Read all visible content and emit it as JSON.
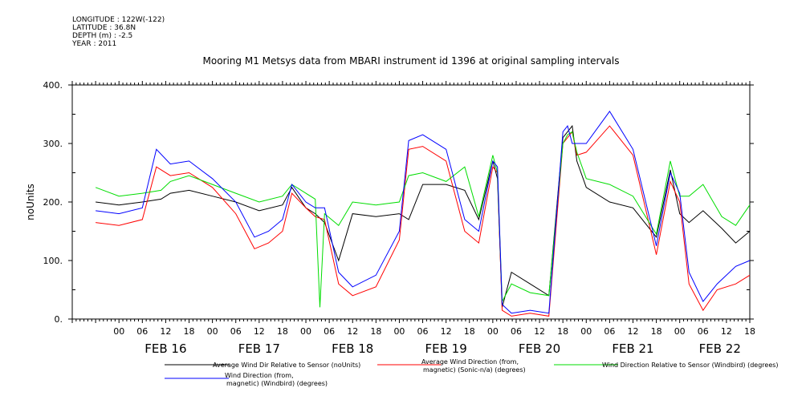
{
  "header": {
    "longitude": "LONGITUDE : 122W(-122)",
    "latitude": "LATITUDE : 36.8N",
    "depth": "DEPTH (m) : -2.5",
    "year": "YEAR : 2011"
  },
  "chart_data": {
    "type": "line",
    "title": "Mooring M1 Metsys data from MBARI instrument id 1396 at original sampling intervals",
    "ylabel": "noUnits",
    "ylim": [
      0,
      400
    ],
    "xlim": [
      -0.5,
      6.75
    ],
    "y_ticks": [
      "0.",
      "100.",
      "200.",
      "300.",
      "400."
    ],
    "hour_ticks": [
      "00",
      "06",
      "12",
      "18",
      "00",
      "06",
      "12",
      "18",
      "00",
      "06",
      "12",
      "18",
      "00",
      "06",
      "12",
      "18",
      "00",
      "06",
      "12",
      "18",
      "00",
      "06",
      "12",
      "18",
      "00",
      "06",
      "12",
      "18"
    ],
    "hour_tick_days": [
      0,
      0.25,
      0.5,
      0.75,
      1,
      1.25,
      1.5,
      1.75,
      2,
      2.25,
      2.5,
      2.75,
      3,
      3.25,
      3.5,
      3.75,
      4,
      4.25,
      4.5,
      4.75,
      5,
      5.25,
      5.5,
      5.75,
      6,
      6.25,
      6.5,
      6.75
    ],
    "day_labels": [
      "FEB 16",
      "FEB 17",
      "FEB 18",
      "FEB 19",
      "FEB 20",
      "FEB 21",
      "FEB 22"
    ],
    "day_label_at": [
      0.5,
      1.5,
      2.5,
      3.5,
      4.5,
      5.5,
      6.43
    ],
    "series": [
      {
        "name": "Average Wind Dir Relative to Sensor (noUnits)",
        "color": "#000000",
        "x": [
          -0.25,
          0,
          0.25,
          0.45,
          0.55,
          0.75,
          1,
          1.25,
          1.5,
          1.75,
          1.85,
          2.0,
          2.1,
          2.2,
          2.35,
          2.5,
          2.75,
          3.0,
          3.1,
          3.25,
          3.5,
          3.7,
          3.85,
          4.0,
          4.05,
          4.1,
          4.2,
          4.4,
          4.6,
          4.75,
          4.8,
          4.85,
          4.9,
          5.0,
          5.25,
          5.5,
          5.75,
          5.9,
          6.0,
          6.1,
          6.25,
          6.45,
          6.6,
          6.75
        ],
        "values": [
          200,
          195,
          200,
          205,
          215,
          220,
          210,
          200,
          185,
          195,
          225,
          190,
          180,
          165,
          100,
          180,
          175,
          180,
          170,
          230,
          230,
          220,
          170,
          270,
          240,
          20,
          80,
          60,
          40,
          310,
          320,
          330,
          270,
          225,
          200,
          190,
          140,
          255,
          180,
          165,
          185,
          155,
          130,
          150
        ]
      },
      {
        "name": "Average Wind Direction (from, magnetic) (Sonic-n/a) (degrees)",
        "color": "#ff0000",
        "x": [
          -0.25,
          0,
          0.25,
          0.4,
          0.55,
          0.75,
          1,
          1.25,
          1.45,
          1.6,
          1.75,
          1.85,
          2.0,
          2.1,
          2.2,
          2.35,
          2.5,
          2.75,
          3.0,
          3.1,
          3.25,
          3.5,
          3.7,
          3.85,
          4.0,
          4.05,
          4.1,
          4.2,
          4.4,
          4.6,
          4.75,
          4.8,
          4.85,
          4.9,
          5.0,
          5.25,
          5.5,
          5.75,
          5.9,
          6.0,
          6.1,
          6.25,
          6.4,
          6.6,
          6.75
        ],
        "values": [
          165,
          160,
          170,
          260,
          245,
          250,
          225,
          180,
          120,
          130,
          150,
          215,
          190,
          175,
          170,
          60,
          40,
          55,
          135,
          290,
          295,
          270,
          150,
          130,
          260,
          250,
          15,
          5,
          10,
          5,
          300,
          310,
          320,
          280,
          285,
          330,
          280,
          110,
          235,
          200,
          60,
          15,
          50,
          60,
          75
        ]
      },
      {
        "name": "Wind Direction Relative to Sensor (Windbird) (degrees)",
        "color": "#00dd00",
        "x": [
          -0.25,
          0,
          0.25,
          0.45,
          0.55,
          0.75,
          1,
          1.25,
          1.5,
          1.75,
          1.85,
          2.0,
          2.1,
          2.15,
          2.2,
          2.35,
          2.5,
          2.75,
          3.0,
          3.1,
          3.25,
          3.5,
          3.7,
          3.85,
          4.0,
          4.05,
          4.1,
          4.2,
          4.4,
          4.6,
          4.75,
          4.8,
          4.85,
          4.9,
          5.0,
          5.25,
          5.5,
          5.75,
          5.9,
          6.0,
          6.1,
          6.25,
          6.45,
          6.6,
          6.75
        ],
        "values": [
          225,
          210,
          215,
          220,
          235,
          245,
          230,
          215,
          200,
          210,
          230,
          215,
          205,
          20,
          180,
          160,
          200,
          195,
          200,
          245,
          250,
          235,
          260,
          175,
          280,
          250,
          30,
          60,
          45,
          40,
          300,
          315,
          320,
          285,
          240,
          230,
          210,
          145,
          270,
          210,
          210,
          230,
          175,
          160,
          195
        ]
      },
      {
        "name": "Wind Direction (from, magnetic) (Windbird) (degrees)",
        "color": "#0000ff",
        "x": [
          -0.25,
          0,
          0.25,
          0.4,
          0.55,
          0.75,
          1,
          1.25,
          1.45,
          1.6,
          1.75,
          1.85,
          2.0,
          2.1,
          2.2,
          2.35,
          2.5,
          2.75,
          3.0,
          3.1,
          3.25,
          3.5,
          3.7,
          3.85,
          4.0,
          4.05,
          4.1,
          4.2,
          4.4,
          4.6,
          4.75,
          4.8,
          4.85,
          4.9,
          5.0,
          5.25,
          5.5,
          5.75,
          5.9,
          6.0,
          6.1,
          6.25,
          6.4,
          6.6,
          6.75
        ],
        "values": [
          185,
          180,
          190,
          290,
          265,
          270,
          240,
          200,
          140,
          150,
          170,
          230,
          200,
          190,
          190,
          80,
          55,
          75,
          150,
          305,
          315,
          290,
          170,
          150,
          270,
          260,
          25,
          10,
          15,
          10,
          320,
          330,
          300,
          300,
          300,
          355,
          290,
          125,
          250,
          215,
          80,
          30,
          60,
          90,
          100
        ]
      }
    ],
    "legend": [
      {
        "line1": "Average Wind Dir Relative to Sensor (noUnits)",
        "line2": "",
        "color": "#000000"
      },
      {
        "line1": "Average Wind Direction (from,",
        "line2": "magnetic) (Sonic-n/a) (degrees)",
        "color": "#ff0000"
      },
      {
        "line1": "Wind Direction Relative to Sensor (Windbird) (degrees)",
        "line2": "",
        "color": "#00dd00"
      },
      {
        "line1": "Wind Direction (from,",
        "line2": "magnetic) (Windbird) (degrees)",
        "color": "#0000ff"
      }
    ],
    "legend_position": "bottom",
    "grid": false
  }
}
